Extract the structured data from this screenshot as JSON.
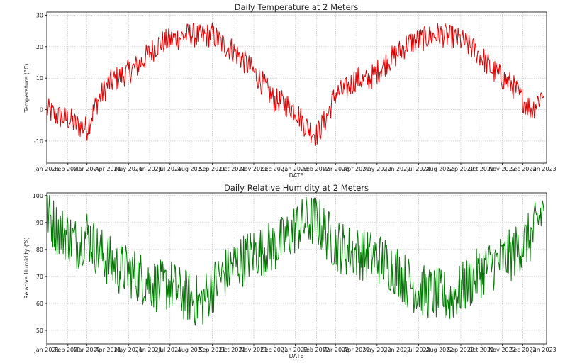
{
  "charts": [
    {
      "type": "line",
      "title": "Daily Temperature at 2 Meters",
      "xlabel": "DATE",
      "ylabel": "Temperature (°C)",
      "ylim": [
        -17,
        31
      ],
      "yticks": [
        -10,
        0,
        10,
        20,
        30
      ],
      "xlim": [
        "2021-01-01",
        "2023-01-05"
      ],
      "grid": true,
      "series": [
        {
          "color": "#e00000",
          "x": [
            "2021-01-01",
            "2021-01-15",
            "2021-02-01",
            "2021-02-15",
            "2021-03-01",
            "2021-03-15",
            "2021-04-01",
            "2021-04-15",
            "2021-05-01",
            "2021-05-15",
            "2021-06-01",
            "2021-06-15",
            "2021-07-01",
            "2021-07-15",
            "2021-08-01",
            "2021-08-15",
            "2021-09-01",
            "2021-09-15",
            "2021-10-01",
            "2021-10-15",
            "2021-11-01",
            "2021-11-15",
            "2021-12-01",
            "2021-12-15",
            "2022-01-01",
            "2022-01-15",
            "2022-02-01",
            "2022-02-15",
            "2022-03-01",
            "2022-03-15",
            "2022-04-01",
            "2022-04-15",
            "2022-05-01",
            "2022-05-15",
            "2022-06-01",
            "2022-06-15",
            "2022-07-01",
            "2022-07-15",
            "2022-08-01",
            "2022-08-15",
            "2022-09-01",
            "2022-09-15",
            "2022-10-01",
            "2022-10-15",
            "2022-11-01",
            "2022-11-15",
            "2022-12-01",
            "2022-12-15",
            "2023-01-01"
          ],
          "y": [
            0,
            -2,
            -3,
            -5,
            -6,
            2,
            8,
            10,
            12,
            14,
            18,
            21,
            22,
            23,
            24,
            23,
            24,
            21,
            19,
            16,
            12,
            8,
            3,
            2,
            0,
            -5,
            -8,
            -3,
            5,
            6,
            10,
            9,
            12,
            15,
            18,
            21,
            22,
            23,
            24,
            23,
            22,
            20,
            17,
            13,
            10,
            8,
            3,
            0,
            6
          ]
        }
      ]
    },
    {
      "type": "line",
      "title": "Daily Relative Humidity at 2 Meters",
      "xlabel": "DATE",
      "ylabel": "Relative Humidity (%)",
      "ylim": [
        45,
        101
      ],
      "yticks": [
        50,
        60,
        70,
        80,
        90,
        100
      ],
      "xlim": [
        "2021-01-01",
        "2023-01-05"
      ],
      "grid": true,
      "series": [
        {
          "color": "#007a00",
          "x": [
            "2021-01-01",
            "2021-01-15",
            "2021-02-01",
            "2021-02-15",
            "2021-03-01",
            "2021-03-15",
            "2021-04-01",
            "2021-04-15",
            "2021-05-01",
            "2021-05-15",
            "2021-06-01",
            "2021-06-15",
            "2021-07-01",
            "2021-07-15",
            "2021-08-01",
            "2021-08-15",
            "2021-09-01",
            "2021-09-15",
            "2021-10-01",
            "2021-10-15",
            "2021-11-01",
            "2021-11-15",
            "2021-12-01",
            "2021-12-15",
            "2022-01-01",
            "2022-01-15",
            "2022-02-01",
            "2022-02-15",
            "2022-03-01",
            "2022-03-15",
            "2022-04-01",
            "2022-04-15",
            "2022-05-01",
            "2022-05-15",
            "2022-06-01",
            "2022-06-15",
            "2022-07-01",
            "2022-07-15",
            "2022-08-01",
            "2022-08-15",
            "2022-09-01",
            "2022-09-15",
            "2022-10-01",
            "2022-10-15",
            "2022-11-01",
            "2022-11-15",
            "2022-12-01",
            "2022-12-15",
            "2023-01-01"
          ],
          "y": [
            94,
            88,
            85,
            82,
            86,
            80,
            76,
            73,
            72,
            70,
            68,
            66,
            67,
            64,
            62,
            60,
            66,
            70,
            74,
            76,
            79,
            80,
            81,
            83,
            88,
            90,
            91,
            86,
            82,
            80,
            79,
            78,
            77,
            75,
            72,
            68,
            65,
            64,
            63,
            62,
            65,
            68,
            72,
            74,
            76,
            78,
            82,
            85,
            96
          ]
        }
      ]
    }
  ],
  "xticks": [
    "Jan 2021",
    "Feb 2021",
    "Mar 2021",
    "Apr 2021",
    "May 2021",
    "Jun 2021",
    "Jul 2021",
    "Aug 2021",
    "Sep 2021",
    "Oct 2021",
    "Nov 2021",
    "Dec 2021",
    "Jan 2022",
    "Feb 2022",
    "Mar 2022",
    "Apr 2022",
    "May 2022",
    "Jun 2022",
    "Jul 2022",
    "Aug 2022",
    "Sep 2022",
    "Oct 2022",
    "Nov 2022",
    "Dec 2022",
    "Jan 2023"
  ]
}
